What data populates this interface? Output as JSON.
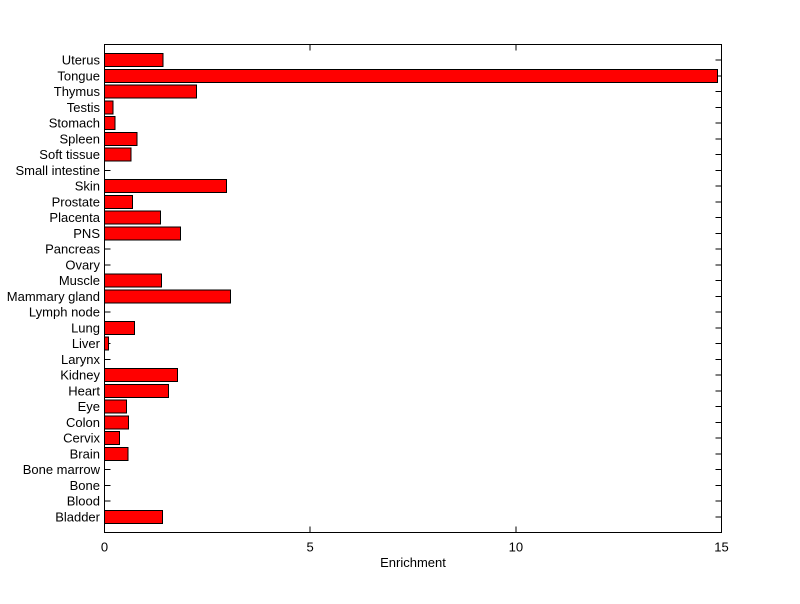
{
  "chart_data": {
    "type": "bar",
    "orientation": "horizontal",
    "title": "",
    "xlabel": "Enrichment",
    "ylabel": "",
    "xlim": [
      0,
      15
    ],
    "xticks": [
      0,
      5,
      10,
      15
    ],
    "grid": false,
    "legend": null,
    "bar_color": "#FF0000",
    "bar_edge_color": "#000000",
    "axis_color": "#000000",
    "background_color": "#FFFFFF",
    "categories_top_to_bottom": [
      "Uterus",
      "Tongue",
      "Thymus",
      "Testis",
      "Stomach",
      "Spleen",
      "Soft tissue",
      "Small intestine",
      "Skin",
      "Prostate",
      "Placenta",
      "PNS",
      "Pancreas",
      "Ovary",
      "Muscle",
      "Mammary gland",
      "Lymph node",
      "Lung",
      "Liver",
      "Larynx",
      "Kidney",
      "Heart",
      "Eye",
      "Colon",
      "Cervix",
      "Brain",
      "Bone marrow",
      "Bone",
      "Blood",
      "Bladder"
    ],
    "values": [
      1.42,
      14.9,
      2.24,
      0.21,
      0.26,
      0.79,
      0.64,
      0,
      2.96,
      0.68,
      1.36,
      1.85,
      0,
      0,
      1.39,
      3.06,
      0,
      0.73,
      0.1,
      0,
      1.77,
      1.56,
      0.53,
      0.58,
      0.36,
      0.57,
      0,
      0,
      0,
      1.41
    ]
  }
}
